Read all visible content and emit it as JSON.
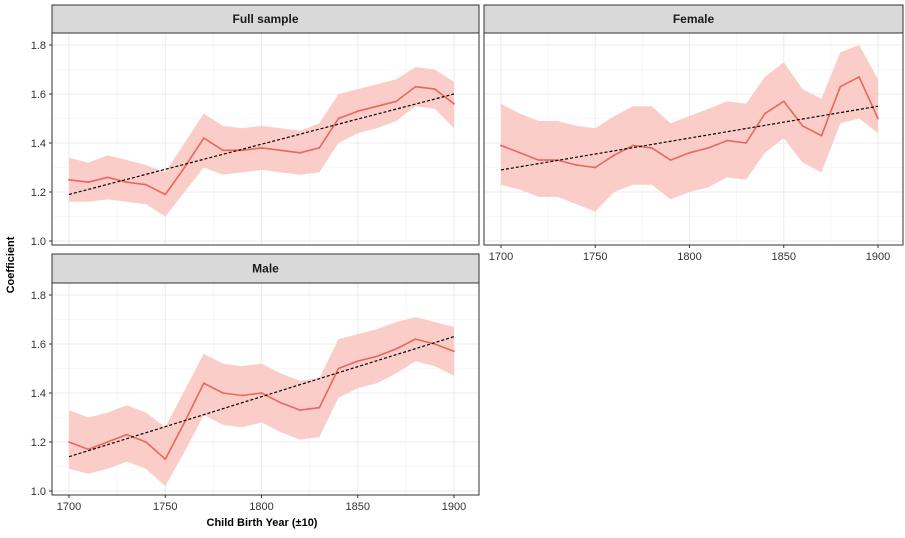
{
  "chart_data": {
    "type": "line",
    "xlabel": "Child Birth Year (±10)",
    "ylabel": "Coefficient",
    "xlim": [
      1700,
      1900
    ],
    "ylim": [
      1.0,
      1.8
    ],
    "x_ticks": [
      "1700",
      "1750",
      "1800",
      "1850",
      "1900"
    ],
    "y_ticks": [
      "1.0",
      "1.2",
      "1.4",
      "1.6",
      "1.8"
    ],
    "grid": true,
    "colors": {
      "line": "#e8675e",
      "ribbon": "#fbc8c2",
      "trend": "#000000",
      "strip": "#d9d9d9"
    },
    "panels": [
      {
        "title": "Full sample",
        "x": [
          1700,
          1710,
          1720,
          1730,
          1740,
          1750,
          1760,
          1770,
          1780,
          1790,
          1800,
          1810,
          1820,
          1830,
          1840,
          1850,
          1860,
          1870,
          1880,
          1890,
          1900
        ],
        "y": [
          1.25,
          1.24,
          1.26,
          1.24,
          1.23,
          1.19,
          1.3,
          1.42,
          1.37,
          1.37,
          1.38,
          1.37,
          1.36,
          1.38,
          1.5,
          1.53,
          1.55,
          1.57,
          1.63,
          1.62,
          1.56
        ],
        "lower": [
          1.16,
          1.16,
          1.17,
          1.16,
          1.15,
          1.1,
          1.2,
          1.3,
          1.27,
          1.28,
          1.29,
          1.28,
          1.27,
          1.28,
          1.4,
          1.44,
          1.46,
          1.49,
          1.55,
          1.54,
          1.46
        ],
        "upper": [
          1.34,
          1.32,
          1.35,
          1.33,
          1.31,
          1.28,
          1.4,
          1.52,
          1.47,
          1.46,
          1.47,
          1.46,
          1.45,
          1.48,
          1.6,
          1.62,
          1.64,
          1.66,
          1.71,
          1.7,
          1.65
        ],
        "trend": [
          [
            1700,
            1.19
          ],
          [
            1900,
            1.6
          ]
        ]
      },
      {
        "title": "Female",
        "x": [
          1700,
          1710,
          1720,
          1730,
          1740,
          1750,
          1760,
          1770,
          1780,
          1790,
          1800,
          1810,
          1820,
          1830,
          1840,
          1850,
          1860,
          1870,
          1880,
          1890,
          1900
        ],
        "y": [
          1.39,
          1.36,
          1.33,
          1.33,
          1.31,
          1.3,
          1.35,
          1.39,
          1.38,
          1.33,
          1.36,
          1.38,
          1.41,
          1.4,
          1.52,
          1.57,
          1.47,
          1.43,
          1.63,
          1.67,
          1.5
        ],
        "lower": [
          1.23,
          1.21,
          1.18,
          1.18,
          1.15,
          1.12,
          1.2,
          1.23,
          1.23,
          1.17,
          1.2,
          1.22,
          1.26,
          1.25,
          1.36,
          1.42,
          1.32,
          1.28,
          1.48,
          1.5,
          1.44
        ],
        "upper": [
          1.56,
          1.52,
          1.49,
          1.49,
          1.47,
          1.46,
          1.51,
          1.55,
          1.55,
          1.48,
          1.51,
          1.54,
          1.57,
          1.56,
          1.67,
          1.73,
          1.62,
          1.58,
          1.77,
          1.8,
          1.66
        ],
        "trend": [
          [
            1700,
            1.29
          ],
          [
            1900,
            1.55
          ]
        ]
      },
      {
        "title": "Male",
        "x": [
          1700,
          1710,
          1720,
          1730,
          1740,
          1750,
          1760,
          1770,
          1780,
          1790,
          1800,
          1810,
          1820,
          1830,
          1840,
          1850,
          1860,
          1870,
          1880,
          1890,
          1900
        ],
        "y": [
          1.2,
          1.17,
          1.2,
          1.23,
          1.2,
          1.13,
          1.28,
          1.44,
          1.4,
          1.39,
          1.4,
          1.36,
          1.33,
          1.34,
          1.5,
          1.53,
          1.55,
          1.58,
          1.62,
          1.6,
          1.57
        ],
        "lower": [
          1.09,
          1.07,
          1.09,
          1.12,
          1.09,
          1.02,
          1.16,
          1.31,
          1.27,
          1.26,
          1.28,
          1.24,
          1.21,
          1.22,
          1.38,
          1.42,
          1.44,
          1.48,
          1.53,
          1.51,
          1.47
        ],
        "upper": [
          1.33,
          1.3,
          1.32,
          1.35,
          1.32,
          1.26,
          1.41,
          1.56,
          1.52,
          1.51,
          1.52,
          1.48,
          1.45,
          1.46,
          1.62,
          1.64,
          1.66,
          1.69,
          1.71,
          1.69,
          1.67
        ],
        "trend": [
          [
            1700,
            1.14
          ],
          [
            1900,
            1.63
          ]
        ]
      }
    ]
  }
}
